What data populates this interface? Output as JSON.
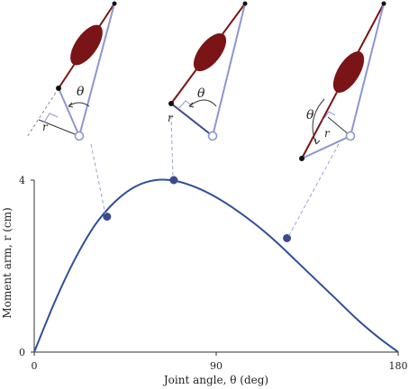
{
  "chart_data": {
    "type": "line",
    "xlabel": "Joint angle, θ (deg)",
    "ylabel": "Moment arm, r (cm)",
    "xlim": [
      0,
      180
    ],
    "ylim": [
      0,
      4
    ],
    "xticks": [
      "0",
      "90",
      "180"
    ],
    "yticks": [
      "0",
      "4"
    ],
    "series": [
      {
        "x": [
          0,
          10,
          20,
          30,
          40,
          50,
          60,
          70,
          80,
          90,
          100,
          110,
          120,
          130,
          140,
          150,
          160,
          170,
          180
        ],
        "y": [
          0,
          1.15,
          2.15,
          2.95,
          3.5,
          3.85,
          4.0,
          3.98,
          3.83,
          3.6,
          3.3,
          2.95,
          2.55,
          2.1,
          1.65,
          1.2,
          0.75,
          0.35,
          0
        ],
        "color": "#2f4f99"
      }
    ],
    "highlight_points": [
      {
        "x": 36,
        "y": 3.15
      },
      {
        "x": 69,
        "y": 4.0
      },
      {
        "x": 125,
        "y": 2.65
      }
    ]
  },
  "insets": {
    "angle_symbol": "θ",
    "moment_arm_symbol": "r"
  },
  "colors": {
    "curve": "#2f4f99",
    "bone": "#7a1416",
    "muscle": "#7a1416",
    "tendon": "#8d95d1",
    "leader": "#9aa3d8"
  }
}
